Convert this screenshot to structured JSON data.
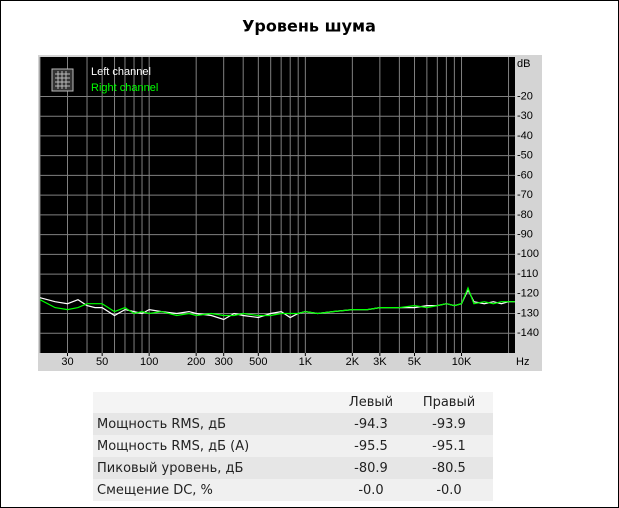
{
  "chart_data": {
    "type": "line",
    "title": "Уровень шума",
    "x_unit": "Hz",
    "y_unit": "dB",
    "xscale": "log",
    "grid": true,
    "background": "#000000",
    "grid_color": "#808080",
    "xlim": [
      20,
      22000
    ],
    "ylim": [
      -150,
      0
    ],
    "xticks": [
      30,
      50,
      100,
      200,
      300,
      500,
      {
        "value": 1000,
        "label": "1K"
      },
      {
        "value": 2000,
        "label": "2K"
      },
      {
        "value": 3000,
        "label": "3K"
      },
      {
        "value": 5000,
        "label": "5K"
      },
      {
        "value": 10000,
        "label": "10K"
      }
    ],
    "xgrid": [
      20,
      30,
      40,
      50,
      60,
      70,
      80,
      90,
      100,
      200,
      300,
      400,
      500,
      600,
      700,
      800,
      900,
      1000,
      2000,
      3000,
      4000,
      5000,
      6000,
      7000,
      8000,
      9000,
      10000,
      20000
    ],
    "yticks": [
      -20,
      -30,
      -40,
      -50,
      -60,
      -70,
      -80,
      -90,
      -100,
      -110,
      -120,
      -130,
      -140
    ],
    "x": [
      20,
      25,
      30,
      35,
      40,
      45,
      50,
      60,
      70,
      80,
      90,
      100,
      120,
      150,
      180,
      200,
      250,
      300,
      350,
      400,
      500,
      600,
      700,
      800,
      900,
      1000,
      1200,
      1500,
      2000,
      2500,
      3000,
      4000,
      5000,
      6000,
      7000,
      8000,
      9000,
      10000,
      11000,
      12000,
      14000,
      16000,
      18000,
      20000,
      22000
    ],
    "series": [
      {
        "name": "Left channel",
        "color": "#ffffff",
        "values": [
          -122,
          -124,
          -125,
          -123,
          -126,
          -127,
          -127,
          -131,
          -128,
          -129,
          -130,
          -128,
          -129,
          -130,
          -129,
          -130,
          -131,
          -133,
          -130,
          -131,
          -132,
          -130,
          -129,
          -132,
          -130,
          -129,
          -130,
          -129,
          -128,
          -128,
          -127,
          -127,
          -127,
          -126,
          -126,
          -125,
          -126,
          -125,
          -118,
          -124,
          -125,
          -124,
          -125,
          -124,
          -124
        ]
      },
      {
        "name": "Right channel",
        "color": "#00ff00",
        "values": [
          -123,
          -127,
          -128,
          -127,
          -125,
          -125,
          -125,
          -129,
          -127,
          -130,
          -129,
          -130,
          -129,
          -131,
          -130,
          -131,
          -130,
          -131,
          -131,
          -130,
          -131,
          -131,
          -130,
          -130,
          -130,
          -129,
          -130,
          -129,
          -128,
          -128,
          -127,
          -127,
          -126,
          -127,
          -126,
          -125,
          -126,
          -125,
          -117,
          -125,
          -124,
          -125,
          -124,
          -124,
          -124
        ]
      }
    ]
  },
  "table": {
    "columns": [
      "Левый",
      "Правый"
    ],
    "rows": [
      {
        "label": "Мощность RMS, дБ",
        "values": [
          "-94.3",
          "-93.9"
        ]
      },
      {
        "label": "Мощность RMS, дБ (A)",
        "values": [
          "-95.5",
          "-95.1"
        ]
      },
      {
        "label": "Пиковый уровень, дБ",
        "values": [
          "-80.9",
          "-80.5"
        ]
      },
      {
        "label": "Смещение DC, %",
        "values": [
          "-0.0",
          "-0.0"
        ]
      }
    ]
  }
}
